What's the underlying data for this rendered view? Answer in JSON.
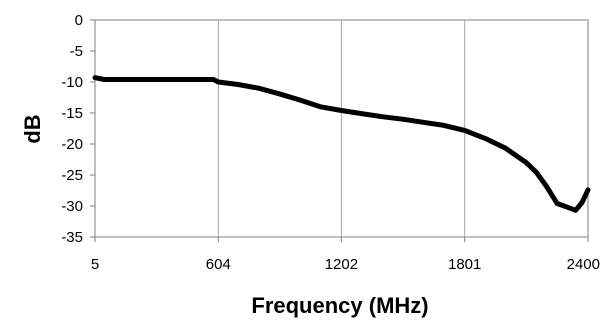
{
  "chart_data": {
    "type": "line",
    "title": "",
    "xlabel": "Frequency (MHz)",
    "ylabel": "dB",
    "xlim": [
      5,
      2400
    ],
    "ylim": [
      -35,
      0
    ],
    "x_ticks": [
      5,
      604,
      1202,
      1801,
      2400
    ],
    "x_tick_labels": [
      "5",
      "604",
      "1202",
      "1801",
      "2400"
    ],
    "y_ticks": [
      0,
      -5,
      -10,
      -15,
      -20,
      -25,
      -30,
      -35
    ],
    "y_tick_labels": [
      "0",
      "-5",
      "-10",
      "-15",
      "-20",
      "-25",
      "-30",
      "-35"
    ],
    "grid": true,
    "legend": "none",
    "series": [
      {
        "color": "#000000",
        "x": [
          5,
          50,
          100,
          200,
          300,
          400,
          500,
          580,
          604,
          700,
          800,
          900,
          1000,
          1100,
          1202,
          1300,
          1400,
          1500,
          1600,
          1700,
          1801,
          1900,
          2000,
          2100,
          2150,
          2200,
          2250,
          2300,
          2340,
          2370,
          2400
        ],
        "y": [
          -9.3,
          -9.6,
          -9.6,
          -9.6,
          -9.6,
          -9.6,
          -9.6,
          -9.6,
          -10.0,
          -10.4,
          -11.0,
          -11.9,
          -12.9,
          -14.0,
          -14.6,
          -15.1,
          -15.6,
          -16.0,
          -16.5,
          -17.0,
          -17.8,
          -19.1,
          -20.7,
          -23.0,
          -24.6,
          -26.9,
          -29.6,
          -30.2,
          -30.7,
          -29.5,
          -27.4
        ]
      }
    ]
  }
}
